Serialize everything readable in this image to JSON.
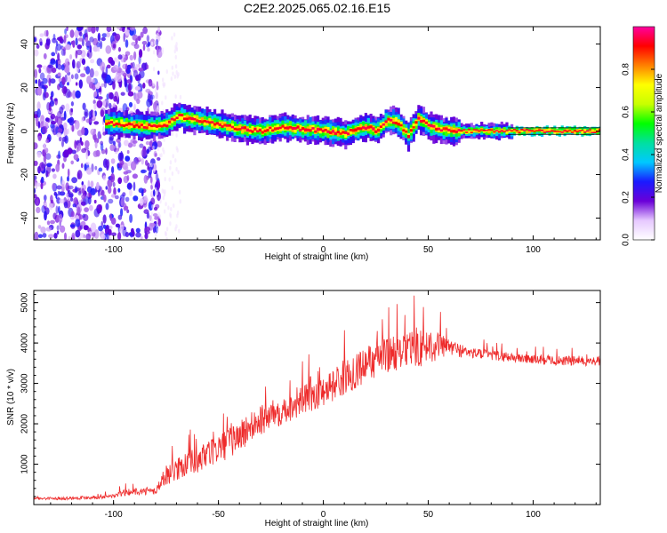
{
  "title": "C2E2.2025.065.02.16.E15",
  "chart_data": [
    {
      "type": "heatmap",
      "title": "C2E2.2025.065.02.16.E15",
      "xlabel": "Height of straight line (km)",
      "ylabel": "Frequency (Hz)",
      "xlim": [
        -138,
        132
      ],
      "ylim": [
        -50,
        48
      ],
      "xticks": [
        -100,
        -50,
        0,
        50,
        100
      ],
      "yticks": [
        -40,
        -20,
        0,
        20,
        40
      ],
      "colorbar": {
        "label": "Normalized spectral amplitude",
        "range": [
          0.0,
          1.0
        ],
        "ticks": [
          0.0,
          0.2,
          0.4,
          0.6,
          0.8
        ],
        "tick_labels": [
          "0.0",
          "0.2",
          "0.4",
          "0.6",
          "0.8"
        ],
        "colors": [
          "#ffffff",
          "#e6c8ff",
          "#6a00d8",
          "#1a1aff",
          "#00c8ff",
          "#00e0a0",
          "#00ff00",
          "#c8ff00",
          "#ffff00",
          "#ff8000",
          "#ff0000",
          "#ff00a0"
        ]
      },
      "ridge": {
        "description_points_x": [
          -105,
          -95,
          -85,
          -75,
          -70,
          -60,
          -50,
          -40,
          -30,
          -20,
          -10,
          0,
          10,
          20,
          25,
          30,
          35,
          40,
          45,
          50,
          60,
          80,
          100,
          132
        ],
        "description_points_y": [
          4,
          3,
          2,
          3,
          7,
          5,
          3,
          1,
          0,
          2,
          1,
          0,
          -1,
          2,
          0,
          5,
          4,
          -2,
          6,
          2,
          0,
          0,
          0,
          0
        ]
      },
      "grid": false
    },
    {
      "type": "line",
      "xlabel": "Height of straight line (km)",
      "ylabel": "SNR (10 * v/v)",
      "xlim": [
        -138,
        132
      ],
      "ylim": [
        0,
        5300
      ],
      "xticks": [
        -100,
        -50,
        0,
        50,
        100
      ],
      "yticks": [
        1000,
        2000,
        3000,
        4000,
        5000
      ],
      "line_color": "#ee2b2b",
      "series": [
        {
          "x": [
            -138,
            -120,
            -100,
            -95,
            -90,
            -80,
            -75,
            -70,
            -60,
            -50,
            -40,
            -30,
            -20,
            -10,
            0,
            10,
            20,
            30,
            40,
            45,
            50,
            55,
            60,
            70,
            80,
            90,
            100,
            110,
            120,
            132
          ],
          "values": [
            150,
            160,
            210,
            300,
            330,
            330,
            750,
            900,
            1100,
            1400,
            1700,
            2100,
            2350,
            2600,
            2850,
            3150,
            3500,
            3750,
            3850,
            3900,
            3950,
            3950,
            3900,
            3750,
            3700,
            3650,
            3600,
            3580,
            3560,
            3550
          ],
          "noise_amplitude": [
            60,
            70,
            90,
            150,
            150,
            150,
            450,
            500,
            600,
            650,
            700,
            700,
            650,
            650,
            700,
            750,
            800,
            800,
            800,
            850,
            800,
            600,
            350,
            250,
            230,
            220,
            220,
            220,
            220,
            220
          ]
        }
      ],
      "grid": false
    }
  ]
}
